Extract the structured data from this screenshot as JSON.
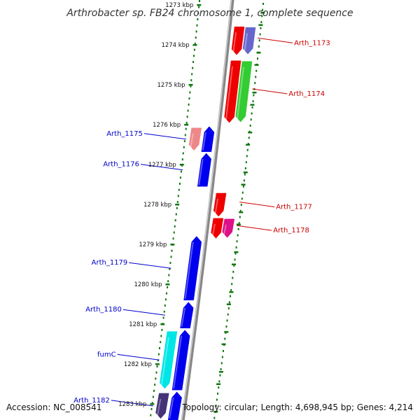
{
  "title": "Arthrobacter sp. FB24 chromosome 1, complete sequence",
  "accession": "Accession: NC_008541",
  "topology": "Topology: circular; Length: 4,698,945 bp; Genes: 4,214",
  "ticks": [
    {
      "kbp": 1273,
      "label": "1273 kbp"
    },
    {
      "kbp": 1274,
      "label": "1274 kbp"
    },
    {
      "kbp": 1275,
      "label": "1275 kbp"
    },
    {
      "kbp": 1276,
      "label": "1276 kbp"
    },
    {
      "kbp": 1277,
      "label": "1277 kbp"
    },
    {
      "kbp": 1278,
      "label": "1278 kbp"
    },
    {
      "kbp": 1279,
      "label": "1279 kbp"
    },
    {
      "kbp": 1280,
      "label": "1280 kbp"
    },
    {
      "kbp": 1281,
      "label": "1281 kbp"
    },
    {
      "kbp": 1282,
      "label": "1282 kbp"
    },
    {
      "kbp": 1283,
      "label": "1283 kbp"
    }
  ],
  "genes_reverse": [
    {
      "label": "Arth_1175",
      "start": 1276.05,
      "end": 1276.68
    },
    {
      "label": "Arth_1176",
      "start": 1276.72,
      "end": 1277.55
    },
    {
      "label": "Arth_1179",
      "start": 1278.8,
      "end": 1280.4
    },
    {
      "label": "Arth_1180",
      "start": 1280.45,
      "end": 1281.1
    },
    {
      "label": "fumC",
      "start": 1281.15,
      "end": 1282.65
    },
    {
      "label": "Arth_1182",
      "start": 1282.7,
      "end": 1283.4
    }
  ],
  "genes_forward": [
    {
      "label": "Arth_1173",
      "start": 1273.55,
      "end": 1274.25
    },
    {
      "label": "Arth_1174",
      "start": 1274.4,
      "end": 1275.95
    },
    {
      "label": "Arth_1177",
      "start": 1277.72,
      "end": 1278.3
    },
    {
      "label": "Arth_1178",
      "start": 1278.35,
      "end": 1278.85
    }
  ],
  "colors": {
    "reverse_label": "#0000cc",
    "forward_label": "#cc0000",
    "cds_blue": "#0000ee",
    "cds_red": "#ee0000",
    "cds_green": "#33cc33",
    "cds_purple": "#6666cc",
    "cds_pink": "#ee8888",
    "cds_cyan": "#00e5e5",
    "cds_navy": "#443377",
    "cds_magenta": "#dd1188",
    "backbone": "#888888",
    "tick_green": "#117711"
  }
}
